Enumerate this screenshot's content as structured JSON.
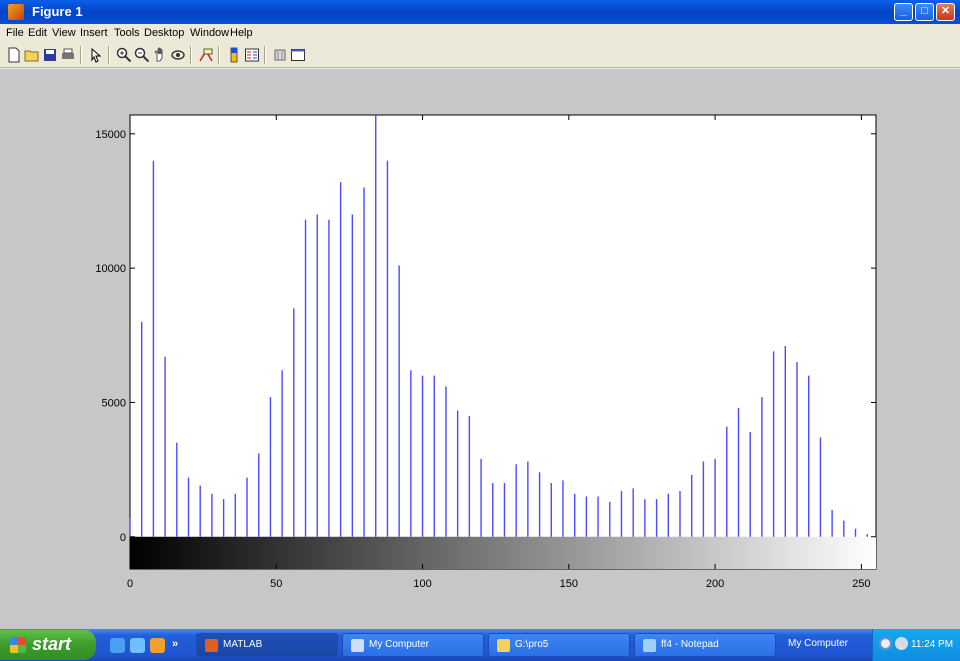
{
  "window": {
    "title": "Figure 1",
    "controls": [
      "minimize",
      "maximize",
      "close"
    ]
  },
  "menu": [
    "File",
    "Edit",
    "View",
    "Insert",
    "Tools",
    "Desktop",
    "Window",
    "Help"
  ],
  "toolbar_icons": [
    "new-figure-icon",
    "open-file-icon",
    "save-icon",
    "print-icon",
    "edit-plot-icon",
    "zoom-in-icon",
    "zoom-out-icon",
    "pan-icon",
    "rotate-3d-icon",
    "data-cursor-icon",
    "insert-colorbar-icon",
    "insert-legend-icon",
    "hide-plot-tools-icon",
    "show-plot-tools-icon"
  ],
  "chart_data": {
    "type": "bar",
    "title": "",
    "xlabel": "",
    "ylabel": "",
    "xlim": [
      0,
      255
    ],
    "ylim": [
      -1200,
      15700
    ],
    "xticks": [
      0,
      50,
      100,
      150,
      200,
      250
    ],
    "yticks": [
      0,
      5000,
      10000,
      15000
    ],
    "bar_color": "#4a4aff",
    "colorbar": "grayscale",
    "x": [
      0,
      4,
      8,
      12,
      16,
      20,
      24,
      28,
      32,
      36,
      40,
      44,
      48,
      52,
      56,
      60,
      64,
      68,
      72,
      76,
      80,
      84,
      88,
      92,
      96,
      100,
      104,
      108,
      112,
      116,
      120,
      124,
      128,
      132,
      136,
      140,
      144,
      148,
      152,
      156,
      160,
      164,
      168,
      172,
      176,
      180,
      184,
      188,
      192,
      196,
      200,
      204,
      208,
      212,
      216,
      220,
      224,
      228,
      232,
      236,
      240,
      244,
      248,
      252
    ],
    "values": [
      700,
      8000,
      14000,
      6700,
      3500,
      2200,
      1900,
      1600,
      1400,
      1600,
      2200,
      3100,
      5200,
      6200,
      8500,
      11800,
      12000,
      11800,
      13200,
      12000,
      13000,
      15700,
      14000,
      10100,
      6200,
      6000,
      6000,
      5600,
      4700,
      4500,
      2900,
      2000,
      2000,
      2700,
      2800,
      2400,
      2000,
      2100,
      1600,
      1500,
      1500,
      1300,
      1700,
      1800,
      1400,
      1400,
      1600,
      1700,
      2300,
      2800,
      2900,
      4100,
      4800,
      3900,
      5200,
      6900,
      7100,
      6500,
      6000,
      3700,
      1000,
      600,
      300,
      100
    ]
  },
  "taskbar": {
    "start_label": "start",
    "items": [
      {
        "label": "MATLAB",
        "icon": "matlab-icon"
      },
      {
        "label": "My Computer",
        "icon": "computer-icon"
      },
      {
        "label": "G:\\pro5",
        "icon": "folder-icon"
      },
      {
        "label": "ff4 - Notepad",
        "icon": "notepad-icon"
      },
      {
        "label": "My Computer",
        "icon": "computer-icon"
      }
    ],
    "clock": "11:24 PM"
  }
}
